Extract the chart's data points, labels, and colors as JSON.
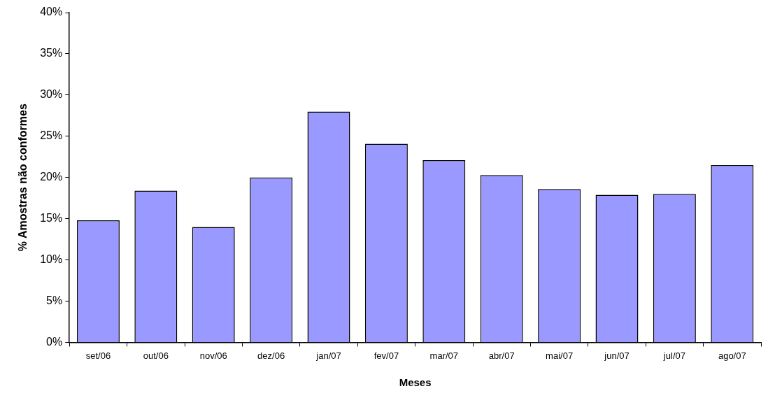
{
  "chart_data": {
    "type": "bar",
    "xlabel": "Meses",
    "ylabel": "% Amostras não conformes",
    "categories": [
      "set/06",
      "out/06",
      "nov/06",
      "dez/06",
      "jan/07",
      "fev/07",
      "mar/07",
      "abr/07",
      "mai/07",
      "jun/07",
      "jul/07",
      "ago/07"
    ],
    "values": [
      14.8,
      18.4,
      14.0,
      20.0,
      28.0,
      24.1,
      22.1,
      20.3,
      18.6,
      17.9,
      18.0,
      21.5
    ],
    "color": "#9999ff",
    "ylim": [
      0,
      40
    ],
    "yticks": [
      {
        "value": 0,
        "label": "0%"
      },
      {
        "value": 5,
        "label": "5%"
      },
      {
        "value": 10,
        "label": "10%"
      },
      {
        "value": 15,
        "label": "15%"
      },
      {
        "value": 20,
        "label": "20%"
      },
      {
        "value": 25,
        "label": "25%"
      },
      {
        "value": 30,
        "label": "30%"
      },
      {
        "value": 35,
        "label": "35%"
      },
      {
        "value": 40,
        "label": "40%"
      }
    ],
    "grid": false,
    "legend": false
  }
}
